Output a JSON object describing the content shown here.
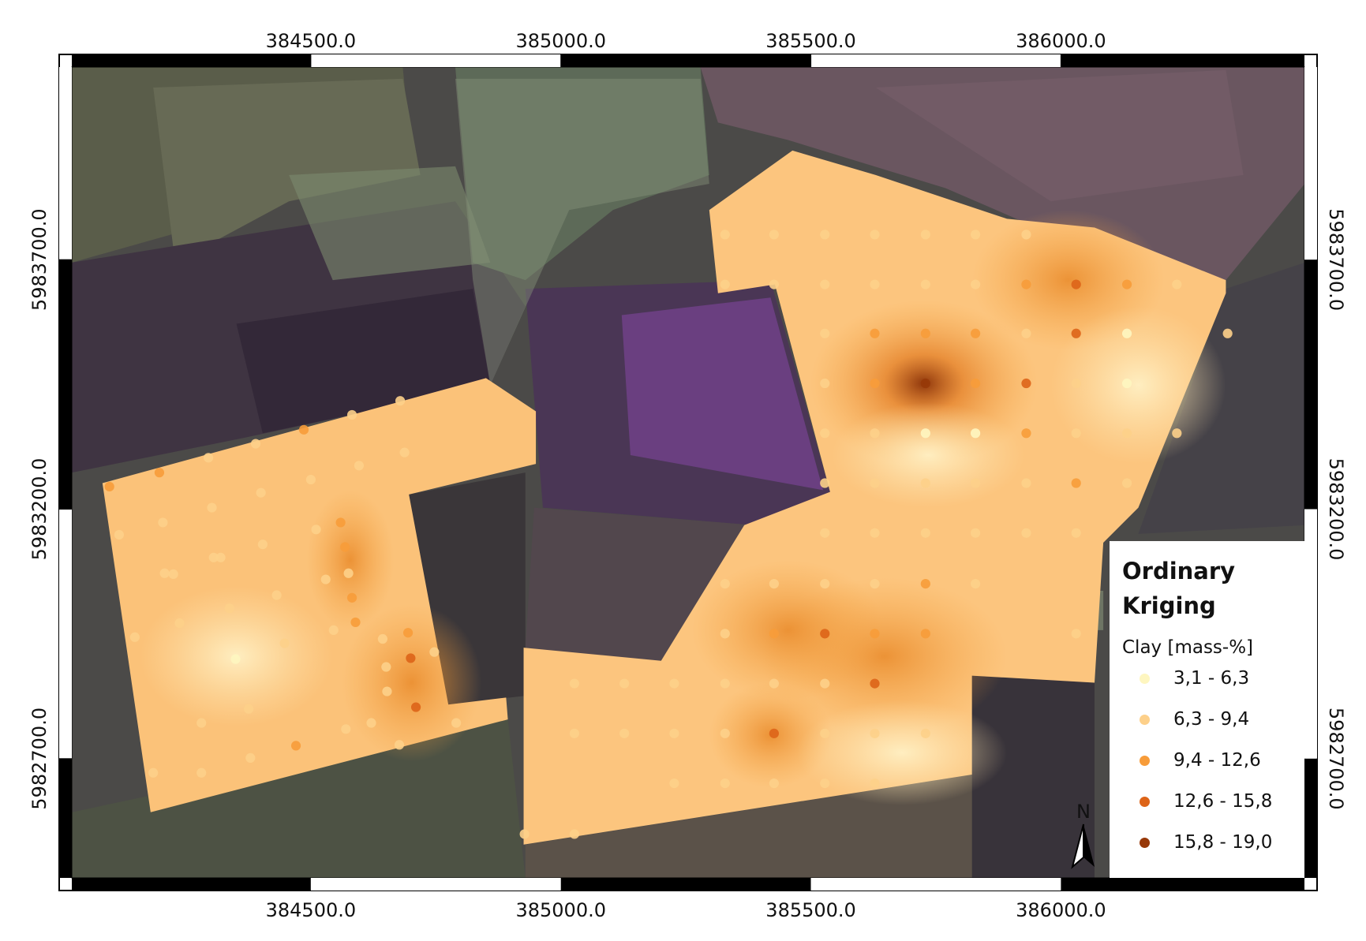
{
  "map": {
    "xlim": [
      384022,
      386487
    ],
    "ylim": [
      5982461,
      5984086
    ],
    "xticks": [
      {
        "value": 384500,
        "label": "384500.0"
      },
      {
        "value": 385000,
        "label": "385000.0"
      },
      {
        "value": 385500,
        "label": "385500.0"
      },
      {
        "value": 386000,
        "label": "386000.0"
      }
    ],
    "yticks": [
      {
        "value": 5983700,
        "label": "5983700.0"
      },
      {
        "value": 5983200,
        "label": "5983200.0"
      },
      {
        "value": 5982700,
        "label": "5982700.0"
      }
    ],
    "legend": {
      "title": "Ordinary Kriging",
      "subtitle": "Clay [mass-%]",
      "classes": [
        {
          "label": "3,1 - 6,3",
          "color": "#fef6c0"
        },
        {
          "label": "6,3 - 9,4",
          "color": "#fdd08a"
        },
        {
          "label": "9,4 - 12,6",
          "color": "#f79c3a"
        },
        {
          "label": "12,6 - 15,8",
          "color": "#dd6418"
        },
        {
          "label": "15,8 - 19,0",
          "color": "#973808"
        }
      ]
    },
    "north_label": "N"
  }
}
